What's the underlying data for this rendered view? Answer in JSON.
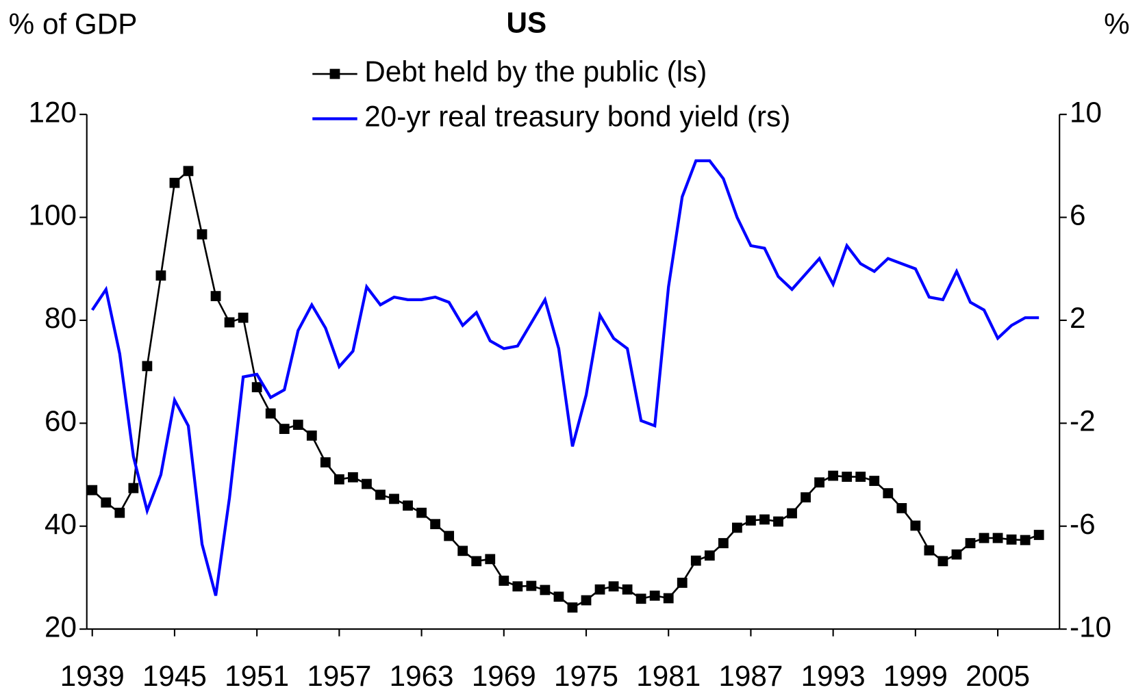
{
  "chart_data": {
    "type": "line",
    "title": "US",
    "y_label": "% of GDP",
    "y2_label": "%",
    "x": [
      1939,
      1940,
      1941,
      1942,
      1943,
      1944,
      1945,
      1946,
      1947,
      1948,
      1949,
      1950,
      1951,
      1952,
      1953,
      1954,
      1955,
      1956,
      1957,
      1958,
      1959,
      1960,
      1961,
      1962,
      1963,
      1964,
      1965,
      1966,
      1967,
      1968,
      1969,
      1970,
      1971,
      1972,
      1973,
      1974,
      1975,
      1976,
      1977,
      1978,
      1979,
      1980,
      1981,
      1982,
      1983,
      1984,
      1985,
      1986,
      1987,
      1988,
      1989,
      1990,
      1991,
      1992,
      1993,
      1994,
      1995,
      1996,
      1997,
      1998,
      1999,
      2000,
      2001,
      2002,
      2003,
      2004,
      2005,
      2006,
      2007,
      2008
    ],
    "xlim": [
      1938.6,
      2009.5
    ],
    "xticks": [
      1939,
      1945,
      1951,
      1957,
      1963,
      1969,
      1975,
      1981,
      1987,
      1993,
      1999,
      2005
    ],
    "ylim": [
      20,
      120
    ],
    "yticks": [
      20,
      40,
      60,
      80,
      100,
      120
    ],
    "y2lim": [
      -10,
      10
    ],
    "y2ticks": [
      -10,
      -6,
      -2,
      2,
      6,
      10
    ],
    "series": [
      {
        "name": "Debt held by the public (ls)",
        "color": "#000000",
        "marker": "square",
        "values": [
          47.0,
          44.6,
          42.6,
          47.4,
          71.1,
          88.7,
          106.7,
          109.0,
          96.7,
          84.7,
          79.6,
          80.5,
          67.0,
          61.9,
          58.9,
          59.7,
          57.6,
          52.4,
          49.1,
          49.5,
          48.2,
          46.1,
          45.3,
          44.0,
          42.6,
          40.4,
          38.1,
          35.2,
          33.2,
          33.6,
          29.4,
          28.3,
          28.4,
          27.6,
          26.3,
          24.2,
          25.6,
          27.7,
          28.3,
          27.7,
          25.9,
          26.5,
          26.0,
          29.0,
          33.3,
          34.3,
          36.7,
          39.7,
          41.1,
          41.3,
          40.9,
          42.5,
          45.6,
          48.5,
          49.8,
          49.6,
          49.6,
          48.8,
          46.4,
          43.5,
          40.1,
          35.3,
          33.2,
          34.5,
          36.7,
          37.7,
          37.7,
          37.4,
          37.3,
          38.3
        ]
      },
      {
        "name": "20-yr real treasury bond yield (rs)",
        "color": "#0000ff",
        "axis": "y2",
        "values": [
          2.4,
          3.2,
          0.7,
          -3.3,
          -5.4,
          -4.0,
          -1.1,
          -2.1,
          -6.7,
          -8.7,
          -4.9,
          -0.2,
          -0.1,
          -1.0,
          -0.7,
          1.6,
          2.6,
          1.7,
          0.2,
          0.8,
          3.3,
          2.6,
          2.9,
          2.8,
          2.8,
          2.9,
          2.7,
          1.8,
          2.3,
          1.2,
          0.9,
          1.0,
          1.9,
          2.8,
          0.9,
          -2.9,
          -0.9,
          2.2,
          1.3,
          0.9,
          -1.9,
          -2.1,
          3.3,
          6.8,
          8.2,
          8.2,
          7.5,
          6.0,
          4.9,
          4.8,
          3.7,
          3.2,
          3.8,
          4.4,
          3.4,
          4.9,
          4.2,
          3.9,
          4.4,
          4.2,
          4.0,
          2.9,
          2.8,
          3.9,
          2.7,
          2.4,
          1.3,
          1.8,
          2.1,
          2.1
        ]
      }
    ]
  }
}
